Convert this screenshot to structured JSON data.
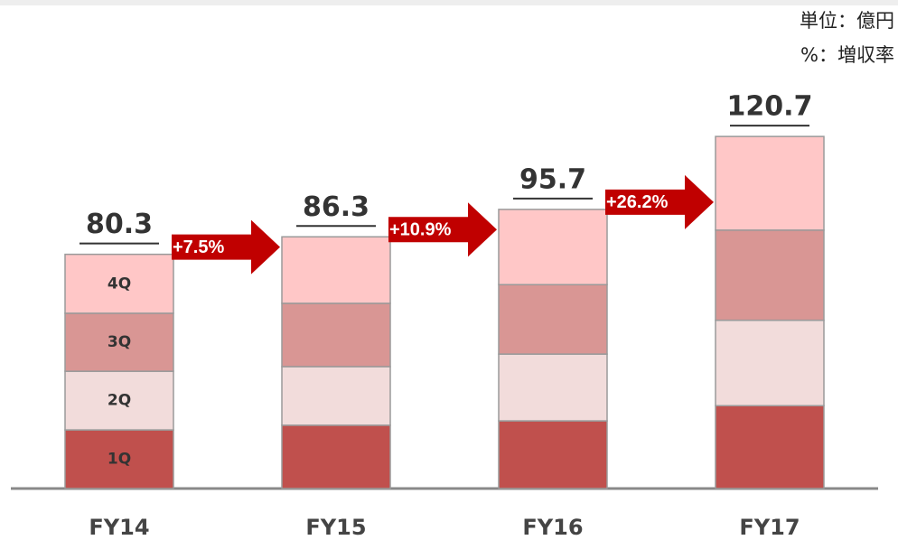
{
  "chart_data": {
    "type": "stacked_bar",
    "notes": [
      "単位：億円",
      "%：増収率"
    ],
    "categories": [
      "FY14",
      "FY15",
      "FY16",
      "FY17"
    ],
    "series": [
      {
        "name": "1Q",
        "color": "#c0504d",
        "values": [
          20.1,
          21.7,
          23.2,
          28.4
        ]
      },
      {
        "name": "2Q",
        "color": "#f2dcdb",
        "values": [
          20.1,
          20.1,
          22.9,
          29.3
        ]
      },
      {
        "name": "3Q",
        "color": "#d99694",
        "values": [
          19.9,
          21.7,
          23.8,
          30.9
        ]
      },
      {
        "name": "4Q",
        "color": "#ffc7c7",
        "values": [
          20.2,
          22.8,
          25.8,
          32.1
        ]
      }
    ],
    "totals": [
      80.3,
      86.3,
      95.7,
      120.7
    ],
    "growth": {
      "values": [
        7.5,
        10.9,
        26.2
      ],
      "value_labels": [
        "+7.5%",
        "+10.9%",
        "+26.2%"
      ],
      "color": "#c00000"
    }
  }
}
